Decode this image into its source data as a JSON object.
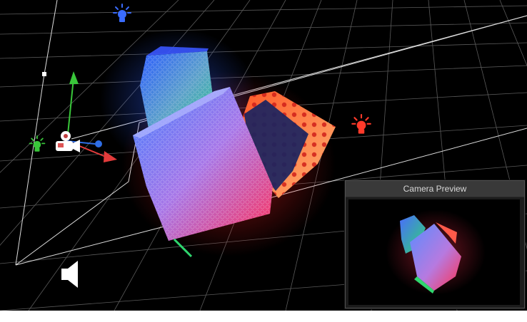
{
  "scene_view": {
    "background_color": "#000000",
    "grid_color": "#5a5a5a",
    "frustum_color": "#dcdcdc"
  },
  "gizmos": {
    "blue_light_icon": "light-bulb-icon",
    "red_light_icon": "light-bulb-icon",
    "green_light_icon": "light-bulb-icon",
    "camera_icon": "camera-icon",
    "audio_source_icon": "speaker-icon",
    "axis_colors": {
      "x": "#e23b3b",
      "y": "#39c63a",
      "z": "#2f6ee6"
    }
  },
  "camera_preview": {
    "title": "Camera Preview"
  }
}
